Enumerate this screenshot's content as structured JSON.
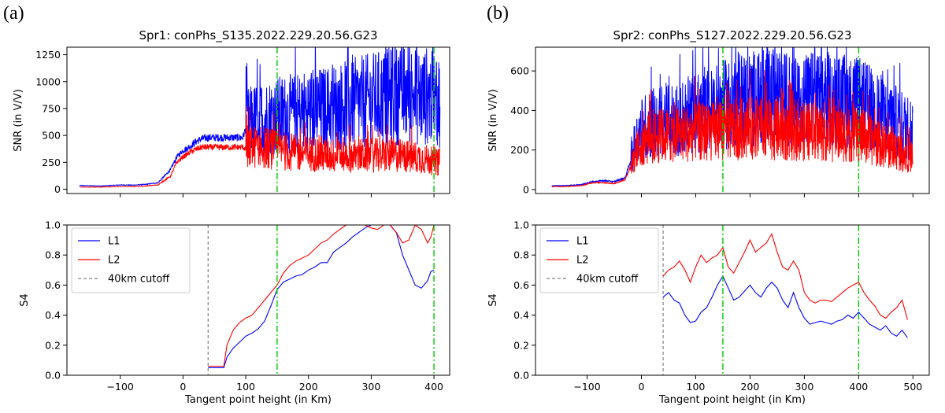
{
  "chart_data": [
    {
      "panel_label": "(a)",
      "title": "Spr1: conPhs_S135.2022.229.20.56.G23",
      "top": {
        "type": "line",
        "ylabel": "SNR (in V/V)",
        "xlim": [
          -185,
          425
        ],
        "ylim": [
          -40,
          1320
        ],
        "yticks": [
          0,
          250,
          500,
          750,
          1000,
          1250
        ],
        "xticks": [
          -100,
          0,
          100,
          200,
          300,
          400
        ],
        "vlines": [
          150,
          400
        ],
        "series": [
          {
            "color": "#0000ff",
            "x": [
              -165,
              -130,
              -100,
              -80,
              -60,
              -40,
              -20,
              -10,
              0,
              10,
              20,
              30,
              40,
              60,
              80,
              95,
              100,
              120,
              140,
              160,
              180,
              200,
              220,
              240,
              260,
              280,
              300,
              320,
              340,
              360,
              380,
              390,
              400,
              410
            ],
            "y": [
              35,
              30,
              40,
              38,
              45,
              60,
              180,
              300,
              360,
              390,
              440,
              470,
              480,
              480,
              480,
              480,
              560,
              600,
              620,
              640,
              640,
              680,
              680,
              700,
              720,
              740,
              760,
              780,
              800,
              820,
              780,
              800,
              760,
              760
            ]
          },
          {
            "color": "#ff0000",
            "x": [
              -165,
              -130,
              -100,
              -80,
              -60,
              -40,
              -20,
              -10,
              0,
              10,
              20,
              30,
              40,
              60,
              80,
              95,
              100,
              120,
              140,
              160,
              180,
              200,
              220,
              240,
              260,
              280,
              300,
              320,
              340,
              360,
              380,
              390,
              400,
              410
            ],
            "y": [
              20,
              20,
              25,
              25,
              30,
              40,
              120,
              250,
              300,
              340,
              370,
              390,
              390,
              390,
              390,
              390,
              380,
              380,
              360,
              330,
              320,
              320,
              310,
              300,
              300,
              300,
              300,
              300,
              300,
              290,
              280,
              260,
              250,
              240
            ]
          }
        ]
      },
      "bottom": {
        "type": "line",
        "xlabel": "Tangent point height (in Km)",
        "ylabel": "S4",
        "xlim": [
          -185,
          425
        ],
        "ylim": [
          0,
          1.0
        ],
        "yticks": [
          0.0,
          0.2,
          0.4,
          0.6,
          0.8,
          1.0
        ],
        "xticks": [
          -100,
          0,
          100,
          200,
          300,
          400
        ],
        "vlines": [
          150,
          400
        ],
        "cutoff": 40,
        "legend": [
          "L1",
          "L2",
          "40km cutoff"
        ],
        "series": [
          {
            "name": "L1",
            "color": "#0000ff",
            "x": [
              40,
              55,
              65,
              70,
              80,
              90,
              100,
              110,
              120,
              130,
              140,
              150,
              160,
              170,
              180,
              190,
              200,
              210,
              220,
              230,
              240,
              250,
              260,
              270,
              280,
              290,
              300,
              310,
              320,
              330,
              340,
              350,
              360,
              370,
              380,
              390,
              395,
              400
            ],
            "y": [
              0.05,
              0.05,
              0.05,
              0.12,
              0.18,
              0.22,
              0.26,
              0.28,
              0.31,
              0.36,
              0.46,
              0.57,
              0.62,
              0.64,
              0.66,
              0.67,
              0.7,
              0.72,
              0.75,
              0.75,
              0.82,
              0.85,
              0.88,
              0.92,
              0.95,
              0.98,
              1.0,
              1.0,
              1.0,
              1.0,
              0.95,
              0.8,
              0.7,
              0.6,
              0.58,
              0.63,
              0.69,
              0.7
            ]
          },
          {
            "name": "L2",
            "color": "#ff0000",
            "x": [
              40,
              55,
              65,
              70,
              80,
              90,
              100,
              110,
              120,
              130,
              140,
              150,
              160,
              170,
              180,
              190,
              200,
              210,
              220,
              230,
              240,
              250,
              260,
              270,
              280,
              290,
              300,
              310,
              320,
              330,
              340,
              350,
              360,
              370,
              380,
              390,
              395,
              400
            ],
            "y": [
              0.06,
              0.06,
              0.06,
              0.2,
              0.3,
              0.35,
              0.38,
              0.4,
              0.45,
              0.5,
              0.55,
              0.6,
              0.68,
              0.73,
              0.76,
              0.78,
              0.8,
              0.84,
              0.88,
              0.9,
              0.94,
              0.97,
              1.0,
              1.0,
              1.0,
              1.0,
              0.98,
              0.97,
              1.0,
              1.0,
              0.95,
              0.88,
              0.9,
              1.0,
              0.97,
              0.88,
              0.92,
              1.0
            ]
          }
        ]
      }
    },
    {
      "panel_label": "(b)",
      "title": "Spr2: conPhs_S127.2022.229.20.56.G23",
      "top": {
        "type": "line",
        "ylabel": "SNR (in V/V)",
        "xlim": [
          -195,
          530
        ],
        "ylim": [
          -20,
          720
        ],
        "yticks": [
          0,
          200,
          400,
          600
        ],
        "xticks": [
          -100,
          0,
          100,
          200,
          300,
          400,
          500
        ],
        "vlines": [
          150,
          400
        ],
        "series": [
          {
            "color": "#0000ff",
            "x": [
              -165,
              -140,
              -110,
              -90,
              -70,
              -50,
              -30,
              -10,
              0,
              20,
              40,
              60,
              80,
              100,
              120,
              140,
              160,
              180,
              200,
              220,
              240,
              260,
              280,
              300,
              320,
              340,
              360,
              380,
              400,
              420,
              440,
              460,
              480,
              500
            ],
            "y": [
              20,
              20,
              25,
              40,
              45,
              40,
              60,
              230,
              280,
              310,
              320,
              330,
              340,
              350,
              360,
              380,
              400,
              420,
              420,
              430,
              430,
              420,
              410,
              410,
              420,
              420,
              410,
              410,
              400,
              380,
              350,
              330,
              300,
              280
            ]
          },
          {
            "color": "#ff0000",
            "x": [
              -165,
              -140,
              -110,
              -90,
              -70,
              -50,
              -30,
              -10,
              0,
              20,
              40,
              60,
              80,
              100,
              120,
              140,
              160,
              180,
              200,
              220,
              240,
              260,
              280,
              300,
              320,
              340,
              360,
              380,
              400,
              420,
              440,
              460,
              480,
              500
            ],
            "y": [
              15,
              15,
              20,
              35,
              35,
              30,
              50,
              180,
              230,
              250,
              260,
              270,
              270,
              280,
              280,
              280,
              290,
              290,
              300,
              300,
              290,
              280,
              280,
              280,
              280,
              280,
              270,
              270,
              260,
              240,
              220,
              200,
              180,
              160
            ]
          }
        ]
      },
      "bottom": {
        "type": "line",
        "xlabel": "Tangent point height (in Km)",
        "ylabel": "S4",
        "xlim": [
          -195,
          530
        ],
        "ylim": [
          0,
          1.0
        ],
        "yticks": [
          0.0,
          0.2,
          0.4,
          0.6,
          0.8,
          1.0
        ],
        "xticks": [
          -100,
          0,
          100,
          200,
          300,
          400,
          500
        ],
        "vlines": [
          150,
          400
        ],
        "cutoff": 40,
        "legend": [
          "L1",
          "L2",
          "40km cutoff"
        ],
        "series": [
          {
            "name": "L1",
            "color": "#0000ff",
            "x": [
              40,
              50,
              60,
              70,
              80,
              90,
              100,
              110,
              120,
              130,
              140,
              150,
              160,
              170,
              180,
              190,
              200,
              210,
              220,
              230,
              240,
              250,
              260,
              270,
              280,
              290,
              300,
              310,
              320,
              330,
              340,
              350,
              360,
              370,
              380,
              390,
              400,
              410,
              420,
              430,
              440,
              450,
              460,
              470,
              480,
              490
            ],
            "y": [
              0.52,
              0.55,
              0.5,
              0.48,
              0.4,
              0.35,
              0.36,
              0.42,
              0.45,
              0.52,
              0.6,
              0.66,
              0.58,
              0.5,
              0.52,
              0.56,
              0.6,
              0.55,
              0.52,
              0.58,
              0.62,
              0.58,
              0.5,
              0.45,
              0.55,
              0.45,
              0.38,
              0.34,
              0.35,
              0.36,
              0.35,
              0.34,
              0.36,
              0.37,
              0.4,
              0.38,
              0.42,
              0.38,
              0.34,
              0.32,
              0.3,
              0.33,
              0.28,
              0.26,
              0.3,
              0.25
            ]
          },
          {
            "name": "L2",
            "color": "#ff0000",
            "x": [
              40,
              50,
              60,
              70,
              80,
              90,
              100,
              110,
              120,
              130,
              140,
              150,
              160,
              170,
              180,
              190,
              200,
              210,
              220,
              230,
              240,
              250,
              260,
              270,
              280,
              290,
              300,
              310,
              320,
              330,
              340,
              350,
              360,
              370,
              380,
              390,
              400,
              410,
              420,
              430,
              440,
              450,
              460,
              470,
              480,
              490
            ],
            "y": [
              0.66,
              0.7,
              0.72,
              0.76,
              0.7,
              0.62,
              0.72,
              0.8,
              0.75,
              0.78,
              0.8,
              0.85,
              0.72,
              0.68,
              0.75,
              0.82,
              0.9,
              0.82,
              0.85,
              0.88,
              0.94,
              0.82,
              0.72,
              0.7,
              0.76,
              0.7,
              0.55,
              0.5,
              0.48,
              0.5,
              0.5,
              0.49,
              0.52,
              0.55,
              0.58,
              0.6,
              0.62,
              0.55,
              0.5,
              0.46,
              0.4,
              0.38,
              0.42,
              0.45,
              0.5,
              0.37
            ]
          }
        ]
      }
    }
  ]
}
